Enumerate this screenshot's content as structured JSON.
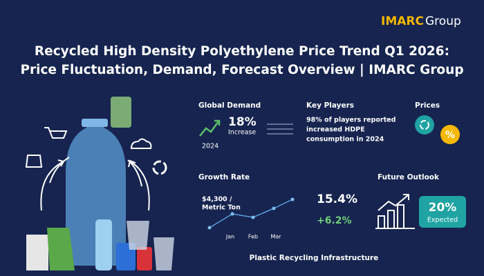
{
  "brand": {
    "name": "IMARC",
    "suffix": "Group"
  },
  "title": [
    "Recycled High Density Polyethylene Price Trend Q1 2026:",
    "Price Fluctuation, Demand, Forecast Overview | IMARC Group"
  ],
  "global_demand": {
    "heading": "Global Demand",
    "value": "18%",
    "label": "Increase",
    "year": "2024"
  },
  "key_players": {
    "heading": "Key Players",
    "text": [
      "98% of players reported",
      "increased HDPE",
      "consumption in 2024"
    ]
  },
  "prices": {
    "heading": "Prices",
    "icon": "%"
  },
  "growth_rate": {
    "heading": "Growth Rate",
    "price": [
      "$4,300 /",
      "Metric Ton"
    ],
    "months": [
      "Jan",
      "Feb",
      "Mar"
    ],
    "rate": "15.4%",
    "change": "+6.2%"
  },
  "future_outlook": {
    "heading": "Future Outlook",
    "value": "20%",
    "label": "Expected"
  },
  "footer": "Plastic Recycling Infrastructure"
}
